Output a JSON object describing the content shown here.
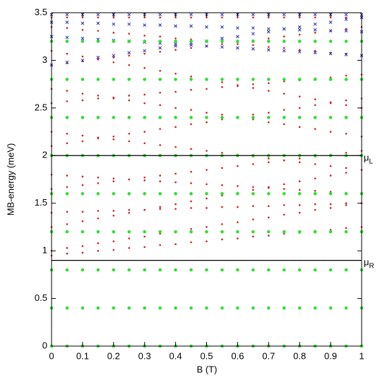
{
  "chart_data": {
    "type": "scatter",
    "xlabel": "B (T)",
    "ylabel": "MB-energy (meV)",
    "xlim": [
      0,
      1
    ],
    "ylim": [
      0,
      3.5
    ],
    "xticks": [
      0,
      0.1,
      0.2,
      0.3,
      0.4,
      0.5,
      0.6,
      0.7,
      0.8,
      0.9,
      1
    ],
    "yticks": [
      0,
      0.5,
      1,
      1.5,
      2,
      2.5,
      3,
      3.5
    ],
    "grid": false,
    "hlines": [
      {
        "y": 2,
        "label": "μ",
        "subscript": "L"
      },
      {
        "y": 0.9,
        "label": "μ",
        "subscript": "R"
      }
    ],
    "x": [
      0,
      0.05,
      0.1,
      0.15,
      0.2,
      0.25,
      0.3,
      0.35,
      0.4,
      0.45,
      0.5,
      0.55,
      0.6,
      0.65,
      0.7,
      0.75,
      0.8,
      0.85,
      0.9,
      0.95,
      1
    ],
    "series": [
      {
        "color": "#cc2020",
        "marker": "dot",
        "values": [
          0.95,
          0.97,
          0.98,
          1.0,
          1.01,
          1.03,
          1.04,
          1.06,
          1.07,
          1.09,
          1.1,
          1.12,
          1.13,
          1.15,
          1.16,
          1.18,
          1.19,
          1.21,
          1.22,
          1.24,
          1.25
        ]
      },
      {
        "color": "#cc2020",
        "marker": "dot",
        "values": [
          1.0,
          1.03,
          1.05,
          1.08,
          1.1,
          1.13,
          1.15,
          1.18,
          1.2,
          1.23,
          1.25,
          1.28,
          1.3,
          1.33,
          1.35,
          1.38,
          1.4,
          1.43,
          1.45,
          1.48,
          1.5
        ]
      },
      {
        "color": "#cc2020",
        "marker": "dot",
        "values": [
          1.25,
          1.28,
          1.31,
          1.34,
          1.37,
          1.4,
          1.43,
          1.46,
          1.49,
          1.52,
          1.55,
          1.58,
          1.61,
          1.64,
          1.67,
          1.7,
          1.73,
          1.76,
          1.79,
          1.82,
          1.85
        ]
      },
      {
        "color": "#cc2020",
        "marker": "dot",
        "values": [
          1.4,
          1.41,
          1.41,
          1.42,
          1.42,
          1.43,
          1.43,
          1.44,
          1.44,
          1.45,
          1.45,
          1.46,
          1.46,
          1.47,
          1.47,
          1.48,
          1.48,
          1.49,
          1.49,
          1.5,
          1.5
        ]
      },
      {
        "color": "#cc2020",
        "marker": "dot",
        "values": [
          1.65,
          1.67,
          1.69,
          1.71,
          1.73,
          1.75,
          1.77,
          1.79,
          1.81,
          1.83,
          1.85,
          1.87,
          1.89,
          1.91,
          1.93,
          1.95,
          1.97,
          1.99,
          2.01,
          2.03,
          2.05
        ]
      },
      {
        "color": "#cc2020",
        "marker": "dot",
        "values": [
          1.8,
          1.79,
          1.78,
          1.77,
          1.76,
          1.75,
          1.74,
          1.73,
          1.72,
          1.71,
          1.7,
          1.69,
          1.68,
          1.67,
          1.66,
          1.65,
          1.64,
          1.63,
          1.62,
          1.61,
          1.6
        ]
      },
      {
        "color": "#cc2020",
        "marker": "dot",
        "values": [
          2.1,
          2.13,
          2.15,
          2.18,
          2.2,
          2.23,
          2.25,
          2.28,
          2.3,
          2.33,
          2.35,
          2.38,
          2.4,
          2.43,
          2.45,
          2.48,
          2.5,
          2.53,
          2.55,
          2.58,
          2.6
        ]
      },
      {
        "color": "#cc2020",
        "marker": "dot",
        "values": [
          2.25,
          2.23,
          2.21,
          2.19,
          2.17,
          2.15,
          2.13,
          2.11,
          2.09,
          2.07,
          2.05,
          2.03,
          2.01,
          1.99,
          1.97,
          1.95,
          1.93,
          1.91,
          1.89,
          1.87,
          1.85
        ]
      },
      {
        "color": "#cc2020",
        "marker": "dot",
        "values": [
          2.55,
          2.57,
          2.58,
          2.6,
          2.61,
          2.63,
          2.64,
          2.66,
          2.67,
          2.69,
          2.7,
          2.72,
          2.73,
          2.75,
          2.76,
          2.78,
          2.79,
          2.81,
          2.82,
          2.84,
          2.85
        ]
      },
      {
        "color": "#cc2020",
        "marker": "dot",
        "values": [
          2.7,
          2.68,
          2.65,
          2.63,
          2.6,
          2.58,
          2.55,
          2.53,
          2.5,
          2.48,
          2.45,
          2.43,
          2.4,
          2.38,
          2.35,
          2.33,
          2.3,
          2.28,
          2.25,
          2.23,
          2.2
        ]
      },
      {
        "color": "#cc2020",
        "marker": "dot",
        "values": [
          2.95,
          2.97,
          2.99,
          3.01,
          3.03,
          3.05,
          3.07,
          3.09,
          3.11,
          3.13,
          3.15,
          3.17,
          3.19,
          3.21,
          3.23,
          3.25,
          3.27,
          3.29,
          3.31,
          3.33,
          3.35
        ]
      },
      {
        "color": "#cc2020",
        "marker": "dot",
        "values": [
          3.1,
          3.07,
          3.04,
          3.01,
          2.98,
          2.95,
          2.92,
          2.89,
          2.86,
          2.83,
          2.8,
          2.77,
          2.74,
          2.71,
          2.68,
          2.65,
          2.62,
          2.59,
          2.56,
          2.53,
          2.5
        ]
      },
      {
        "color": "#cc2020",
        "marker": "dot",
        "values": [
          3.35,
          3.34,
          3.32,
          3.31,
          3.29,
          3.28,
          3.26,
          3.25,
          3.23,
          3.22,
          3.2,
          3.19,
          3.17,
          3.16,
          3.14,
          3.13,
          3.11,
          3.1,
          3.08,
          3.07,
          3.05
        ]
      },
      {
        "color": "#cc2020",
        "marker": "dot",
        "values": [
          3.45,
          3.45,
          3.45,
          3.45,
          3.45,
          3.45,
          3.45,
          3.45,
          3.45,
          3.45,
          3.45,
          3.45,
          3.45,
          3.45,
          3.45,
          3.45,
          3.45,
          3.45,
          3.45,
          3.45,
          3.45
        ]
      },
      {
        "color": "#2a2aa8",
        "marker": "cross",
        "values": [
          2.95,
          2.98,
          3.0,
          3.03,
          3.05,
          3.08,
          3.1,
          3.13,
          3.15,
          3.18,
          3.2,
          3.23,
          3.25,
          3.28,
          3.3,
          3.33,
          3.35,
          3.38,
          3.4,
          3.43,
          3.45
        ]
      },
      {
        "color": "#2a2aa8",
        "marker": "cross",
        "values": [
          3.25,
          3.24,
          3.23,
          3.22,
          3.21,
          3.2,
          3.19,
          3.18,
          3.17,
          3.16,
          3.15,
          3.14,
          3.13,
          3.12,
          3.11,
          3.1,
          3.09,
          3.08,
          3.07,
          3.06,
          3.05
        ]
      },
      {
        "color": "#2a2aa8",
        "marker": "cross",
        "values": [
          3.4,
          3.4,
          3.39,
          3.39,
          3.38,
          3.38,
          3.37,
          3.37,
          3.36,
          3.36,
          3.35,
          3.35,
          3.34,
          3.34,
          3.33,
          3.33,
          3.32,
          3.32,
          3.31,
          3.31,
          3.3
        ]
      },
      {
        "color": "#2a2aa8",
        "marker": "cross",
        "values": [
          3.48,
          3.48,
          3.48,
          3.48,
          3.48,
          3.48,
          3.48,
          3.48,
          3.48,
          3.48,
          3.48,
          3.48,
          3.48,
          3.48,
          3.48,
          3.48,
          3.48,
          3.48,
          3.48,
          3.48,
          3.48
        ]
      },
      {
        "color": "#33dd33",
        "marker": "big",
        "values": [
          0,
          0,
          0,
          0,
          0,
          0,
          0,
          0,
          0,
          0,
          0,
          0,
          0,
          0,
          0,
          0,
          0,
          0,
          0,
          0,
          0
        ]
      },
      {
        "color": "#33dd33",
        "marker": "big",
        "values": [
          0.4,
          0.4,
          0.4,
          0.4,
          0.4,
          0.4,
          0.4,
          0.4,
          0.4,
          0.4,
          0.4,
          0.4,
          0.4,
          0.4,
          0.4,
          0.4,
          0.4,
          0.4,
          0.4,
          0.4,
          0.4
        ]
      },
      {
        "color": "#33dd33",
        "marker": "big",
        "values": [
          0.8,
          0.8,
          0.8,
          0.8,
          0.8,
          0.8,
          0.8,
          0.8,
          0.8,
          0.8,
          0.8,
          0.8,
          0.8,
          0.8,
          0.8,
          0.8,
          0.8,
          0.8,
          0.8,
          0.8,
          0.8
        ]
      },
      {
        "color": "#33dd33",
        "marker": "big",
        "values": [
          1.2,
          1.2,
          1.2,
          1.2,
          1.2,
          1.2,
          1.2,
          1.2,
          1.2,
          1.2,
          1.2,
          1.2,
          1.2,
          1.2,
          1.2,
          1.2,
          1.2,
          1.2,
          1.2,
          1.2,
          1.2
        ]
      },
      {
        "color": "#33dd33",
        "marker": "big",
        "values": [
          1.6,
          1.6,
          1.6,
          1.6,
          1.6,
          1.6,
          1.6,
          1.6,
          1.6,
          1.6,
          1.6,
          1.6,
          1.6,
          1.6,
          1.6,
          1.6,
          1.6,
          1.6,
          1.6,
          1.6,
          1.6
        ]
      },
      {
        "color": "#33dd33",
        "marker": "big",
        "values": [
          2.0,
          2.0,
          2.0,
          2.0,
          2.0,
          2.0,
          2.0,
          2.0,
          2.0,
          2.0,
          2.0,
          2.0,
          2.0,
          2.0,
          2.0,
          2.0,
          2.0,
          2.0,
          2.0,
          2.0,
          2.0
        ]
      },
      {
        "color": "#33dd33",
        "marker": "big",
        "values": [
          2.4,
          2.4,
          2.4,
          2.4,
          2.4,
          2.4,
          2.4,
          2.4,
          2.4,
          2.4,
          2.4,
          2.4,
          2.4,
          2.4,
          2.4,
          2.4,
          2.4,
          2.4,
          2.4,
          2.4,
          2.4
        ]
      },
      {
        "color": "#33dd33",
        "marker": "big",
        "values": [
          2.8,
          2.8,
          2.8,
          2.8,
          2.8,
          2.8,
          2.8,
          2.8,
          2.8,
          2.8,
          2.8,
          2.8,
          2.8,
          2.8,
          2.8,
          2.8,
          2.8,
          2.8,
          2.8,
          2.8,
          2.8
        ]
      },
      {
        "color": "#33dd33",
        "marker": "big",
        "values": [
          3.2,
          3.2,
          3.2,
          3.2,
          3.2,
          3.2,
          3.2,
          3.2,
          3.2,
          3.2,
          3.2,
          3.2,
          3.2,
          3.2,
          3.2,
          3.2,
          3.2,
          3.2,
          3.2,
          3.2,
          3.2
        ]
      }
    ]
  }
}
